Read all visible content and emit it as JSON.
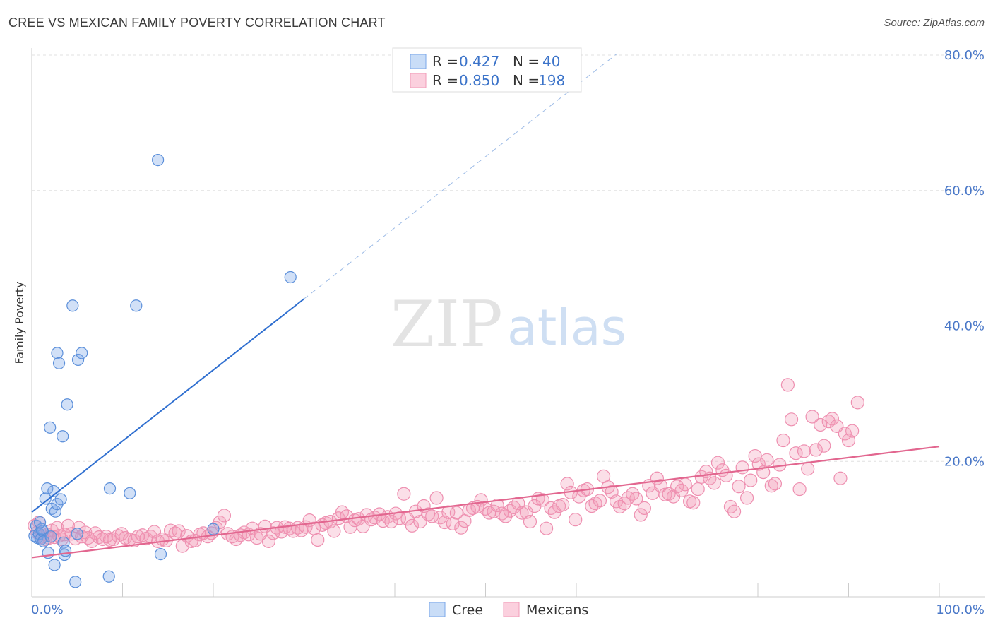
{
  "title": "CREE VS MEXICAN FAMILY POVERTY CORRELATION CHART",
  "source": "Source: ZipAtlas.com",
  "colors": {
    "cree": "#7aa7e8",
    "cree_line": "#2f6fd0",
    "mexicans": "#f29bb8",
    "mexicans_line": "#e2668f",
    "tick": "#4a78c8"
  },
  "legend": {
    "cree": {
      "r_label": "R = ",
      "r_value": "0.427",
      "n_label": "N = ",
      "n_value": "40"
    },
    "mexicans": {
      "r_label": "R = ",
      "r_value": "0.850",
      "n_label": "N = ",
      "n_value": "198"
    }
  },
  "bottom_legend": {
    "cree": "Cree",
    "mexicans": "Mexicans"
  },
  "watermark": {
    "zip": "ZIP",
    "atlas": "atlas"
  },
  "chart_data": {
    "type": "scatter",
    "title": "CREE VS MEXICAN FAMILY POVERTY CORRELATION CHART",
    "xlabel": "",
    "ylabel": "Family Poverty",
    "xlim": [
      0,
      100
    ],
    "ylim": [
      0,
      80
    ],
    "x_tick_labels": [
      "0.0%",
      "100.0%"
    ],
    "y_ticks": [
      20,
      40,
      60,
      80
    ],
    "y_tick_labels": [
      "20.0%",
      "40.0%",
      "60.0%",
      "80.0%"
    ],
    "grid": true,
    "legend_position": "top-center",
    "series": [
      {
        "name": "Cree",
        "r": 0.427,
        "n": 40,
        "trend": {
          "x0": 0,
          "y0": 12.5,
          "x1": 30,
          "y1": 44,
          "dashed_to_x": 64.5
        },
        "points": [
          [
            0.3,
            9
          ],
          [
            0.5,
            10.5
          ],
          [
            0.6,
            8.7
          ],
          [
            0.8,
            9.3
          ],
          [
            1,
            8.5
          ],
          [
            1.2,
            9.7
          ],
          [
            1.3,
            8.2
          ],
          [
            1.5,
            14.5
          ],
          [
            1.7,
            16
          ],
          [
            1.8,
            6.5
          ],
          [
            2,
            25
          ],
          [
            2.2,
            13
          ],
          [
            2.4,
            15.6
          ],
          [
            2.5,
            4.7
          ],
          [
            2.6,
            12.6
          ],
          [
            2.8,
            13.7
          ],
          [
            2.8,
            36
          ],
          [
            3,
            34.5
          ],
          [
            3.2,
            14.4
          ],
          [
            3.4,
            23.7
          ],
          [
            3.5,
            8
          ],
          [
            3.6,
            6.2
          ],
          [
            3.7,
            6.8
          ],
          [
            3.9,
            28.4
          ],
          [
            4.5,
            43
          ],
          [
            5,
            9.3
          ],
          [
            5.1,
            35
          ],
          [
            5.5,
            36
          ],
          [
            4.8,
            2.2
          ],
          [
            8.5,
            3
          ],
          [
            8.6,
            16
          ],
          [
            11.5,
            43
          ],
          [
            10.8,
            15.3
          ],
          [
            13.9,
            64.5
          ],
          [
            14.2,
            6.3
          ],
          [
            20,
            10
          ],
          [
            28.5,
            47.2
          ],
          [
            1.1,
            10
          ],
          [
            0.9,
            11
          ],
          [
            2.1,
            8.9
          ]
        ]
      },
      {
        "name": "Mexicans",
        "r": 0.85,
        "n": 198,
        "trend": {
          "x0": 0,
          "y0": 5.8,
          "x1": 100,
          "y1": 22.2
        },
        "points": [
          [
            0.3,
            10.5
          ],
          [
            0.6,
            9.5
          ],
          [
            0.8,
            11
          ],
          [
            1,
            8.8
          ],
          [
            1.2,
            9
          ],
          [
            1.5,
            8.5
          ],
          [
            1.7,
            9.2
          ],
          [
            1.9,
            8.7
          ],
          [
            2.2,
            9.8
          ],
          [
            2.5,
            8.8
          ],
          [
            2.8,
            10.2
          ],
          [
            3,
            9
          ],
          [
            3.3,
            8.5
          ],
          [
            3.6,
            9.2
          ],
          [
            4,
            10.5
          ],
          [
            4.4,
            9.3
          ],
          [
            4.8,
            8.6
          ],
          [
            5.2,
            10.2
          ],
          [
            5.5,
            8.9
          ],
          [
            5.9,
            9.5
          ],
          [
            6.2,
            8.7
          ],
          [
            6.6,
            8.2
          ],
          [
            7,
            9.4
          ],
          [
            7.4,
            8.8
          ],
          [
            7.8,
            8.5
          ],
          [
            8.2,
            8.9
          ],
          [
            8.6,
            8.4
          ],
          [
            9,
            8.5
          ],
          [
            9.5,
            9
          ],
          [
            9.9,
            9.3
          ],
          [
            10.3,
            8.7
          ],
          [
            10.8,
            8.5
          ],
          [
            11.3,
            8.3
          ],
          [
            11.7,
            8.9
          ],
          [
            12.2,
            9.1
          ],
          [
            12.6,
            8.6
          ],
          [
            13.1,
            8.9
          ],
          [
            13.5,
            9.6
          ],
          [
            13.9,
            8.2
          ],
          [
            14.4,
            8.5
          ],
          [
            14.8,
            8.3
          ],
          [
            15.3,
            9.8
          ],
          [
            15.8,
            9.4
          ],
          [
            16.2,
            9.7
          ],
          [
            16.6,
            7.5
          ],
          [
            17.1,
            9
          ],
          [
            17.6,
            8.2
          ],
          [
            18,
            8.3
          ],
          [
            18.5,
            9.2
          ],
          [
            18.9,
            9.4
          ],
          [
            19.4,
            8.9
          ],
          [
            19.8,
            9.4
          ],
          [
            20.3,
            10.2
          ],
          [
            20.7,
            11
          ],
          [
            21.2,
            12
          ],
          [
            21.6,
            9.3
          ],
          [
            22.1,
            8.9
          ],
          [
            22.5,
            8.5
          ],
          [
            23,
            9.1
          ],
          [
            23.4,
            9.5
          ],
          [
            23.9,
            9.2
          ],
          [
            24.3,
            10.1
          ],
          [
            24.8,
            8.7
          ],
          [
            25.2,
            9.3
          ],
          [
            25.7,
            10.4
          ],
          [
            26.1,
            8.2
          ],
          [
            26.6,
            9.4
          ],
          [
            27,
            10.2
          ],
          [
            27.5,
            9.6
          ],
          [
            27.9,
            10.3
          ],
          [
            28.4,
            10.1
          ],
          [
            28.8,
            9.7
          ],
          [
            29.3,
            10.2
          ],
          [
            29.7,
            9.8
          ],
          [
            30.2,
            10.3
          ],
          [
            30.6,
            11.3
          ],
          [
            31.1,
            10.1
          ],
          [
            31.5,
            8.4
          ],
          [
            32,
            10.6
          ],
          [
            32.4,
            10.9
          ],
          [
            32.9,
            11.1
          ],
          [
            33.3,
            9.7
          ],
          [
            33.8,
            11.6
          ],
          [
            34.2,
            12.5
          ],
          [
            34.7,
            11.9
          ],
          [
            35.1,
            10.3
          ],
          [
            35.6,
            11.3
          ],
          [
            36,
            11.5
          ],
          [
            36.5,
            10.4
          ],
          [
            36.9,
            12.1
          ],
          [
            37.4,
            11.4
          ],
          [
            37.8,
            11.7
          ],
          [
            38.3,
            12.2
          ],
          [
            38.7,
            11.2
          ],
          [
            39.2,
            11.8
          ],
          [
            39.6,
            11.1
          ],
          [
            40.1,
            12.3
          ],
          [
            40.5,
            11.6
          ],
          [
            41,
            15.2
          ],
          [
            41.4,
            11.5
          ],
          [
            41.9,
            10.5
          ],
          [
            42.3,
            12.6
          ],
          [
            42.8,
            11.1
          ],
          [
            43.2,
            13.4
          ],
          [
            43.7,
            12.2
          ],
          [
            44.1,
            11.9
          ],
          [
            44.6,
            14.6
          ],
          [
            45,
            11.7
          ],
          [
            45.5,
            11
          ],
          [
            45.9,
            12.5
          ],
          [
            46.4,
            10.8
          ],
          [
            46.8,
            12.4
          ],
          [
            47.3,
            10.2
          ],
          [
            47.7,
            11.2
          ],
          [
            48.2,
            12.8
          ],
          [
            48.6,
            13.1
          ],
          [
            49.1,
            13.3
          ],
          [
            49.5,
            14.3
          ],
          [
            50,
            13
          ],
          [
            50.4,
            12.4
          ],
          [
            50.9,
            12.6
          ],
          [
            51.3,
            13.5
          ],
          [
            51.8,
            12.3
          ],
          [
            52.2,
            11.9
          ],
          [
            52.7,
            12.7
          ],
          [
            53.1,
            13.2
          ],
          [
            53.6,
            13.8
          ],
          [
            54,
            12.4
          ],
          [
            54.5,
            12.5
          ],
          [
            54.9,
            11.1
          ],
          [
            55.4,
            13.4
          ],
          [
            55.8,
            14.5
          ],
          [
            56.3,
            14.3
          ],
          [
            56.7,
            10.1
          ],
          [
            57.2,
            13.1
          ],
          [
            57.6,
            12.5
          ],
          [
            58.1,
            13.4
          ],
          [
            58.5,
            13.6
          ],
          [
            59,
            16.7
          ],
          [
            59.4,
            15.4
          ],
          [
            59.9,
            11.4
          ],
          [
            60.3,
            14.8
          ],
          [
            60.8,
            15.7
          ],
          [
            61.2,
            15.9
          ],
          [
            61.7,
            13.4
          ],
          [
            62.1,
            13.8
          ],
          [
            62.6,
            14.2
          ],
          [
            63,
            17.8
          ],
          [
            63.5,
            16.2
          ],
          [
            63.9,
            15.5
          ],
          [
            64.4,
            14.1
          ],
          [
            64.8,
            13.3
          ],
          [
            65.3,
            13.8
          ],
          [
            65.7,
            14.6
          ],
          [
            66.2,
            15.2
          ],
          [
            66.6,
            14.5
          ],
          [
            67.1,
            12.1
          ],
          [
            67.5,
            13.1
          ],
          [
            68,
            16.4
          ],
          [
            68.4,
            15.3
          ],
          [
            68.9,
            17.5
          ],
          [
            69.3,
            16.4
          ],
          [
            69.8,
            15.1
          ],
          [
            70.2,
            15.2
          ],
          [
            70.7,
            14.8
          ],
          [
            71.1,
            16.3
          ],
          [
            71.6,
            15.7
          ],
          [
            72,
            16.6
          ],
          [
            72.5,
            14.1
          ],
          [
            72.9,
            13.9
          ],
          [
            73.4,
            15.9
          ],
          [
            73.8,
            17.7
          ],
          [
            74.3,
            18.5
          ],
          [
            74.7,
            17.5
          ],
          [
            75.2,
            16.8
          ],
          [
            75.6,
            19.8
          ],
          [
            76.1,
            18.7
          ],
          [
            76.5,
            17.9
          ],
          [
            77,
            13.3
          ],
          [
            77.4,
            12.6
          ],
          [
            77.9,
            16.3
          ],
          [
            78.3,
            19.1
          ],
          [
            78.8,
            14.6
          ],
          [
            79.2,
            17.2
          ],
          [
            79.7,
            20.8
          ],
          [
            80.1,
            19.6
          ],
          [
            80.6,
            18.4
          ],
          [
            81,
            20.2
          ],
          [
            81.5,
            16.4
          ],
          [
            81.9,
            16.7
          ],
          [
            82.4,
            19.5
          ],
          [
            82.8,
            23.1
          ],
          [
            83.3,
            31.3
          ],
          [
            83.7,
            26.2
          ],
          [
            84.2,
            21.2
          ],
          [
            84.6,
            15.9
          ],
          [
            85.1,
            21.5
          ],
          [
            85.5,
            18.9
          ],
          [
            86,
            26.6
          ],
          [
            86.4,
            21.7
          ],
          [
            86.9,
            25.4
          ],
          [
            87.3,
            22.3
          ],
          [
            87.8,
            25.9
          ],
          [
            88.2,
            26.3
          ],
          [
            88.7,
            25.2
          ],
          [
            89.1,
            17.5
          ],
          [
            89.6,
            24.1
          ],
          [
            90,
            23.1
          ],
          [
            90.4,
            24.5
          ],
          [
            91,
            28.7
          ]
        ]
      }
    ]
  }
}
